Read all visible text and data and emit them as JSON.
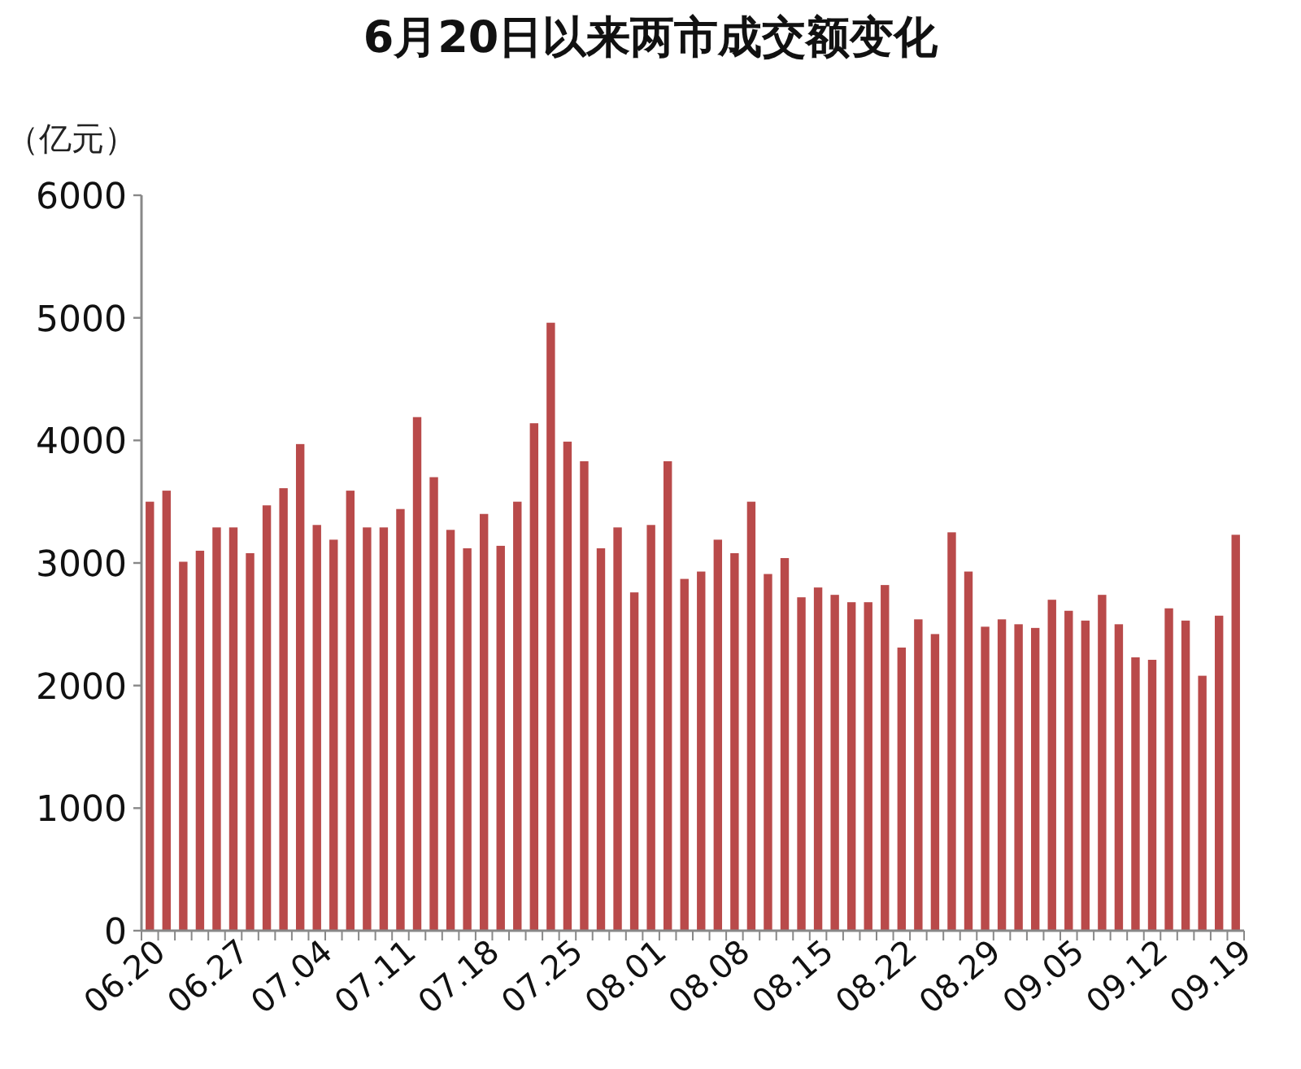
{
  "chart_data": {
    "type": "bar",
    "title": "6月20日以来两市成交额变化",
    "ylabel": "（亿元）",
    "categories": [
      "06.20",
      null,
      null,
      null,
      null,
      "06.27",
      null,
      null,
      null,
      null,
      "07.04",
      null,
      null,
      null,
      null,
      "07.11",
      null,
      null,
      null,
      null,
      "07.18",
      null,
      null,
      null,
      null,
      "07.25",
      null,
      null,
      null,
      null,
      "08.01",
      null,
      null,
      null,
      null,
      "08.08",
      null,
      null,
      null,
      null,
      "08.15",
      null,
      null,
      null,
      null,
      "08.22",
      null,
      null,
      null,
      null,
      "08.29",
      null,
      null,
      null,
      null,
      "09.05",
      null,
      null,
      null,
      null,
      "09.12",
      null,
      null,
      null,
      null,
      "09.19"
    ],
    "values": [
      3500,
      3590,
      3010,
      3100,
      3290,
      3290,
      3080,
      3470,
      3610,
      3970,
      3310,
      3190,
      3590,
      3290,
      3290,
      3440,
      4190,
      3700,
      3270,
      3120,
      3400,
      3140,
      3500,
      4140,
      4960,
      3990,
      3830,
      3120,
      3290,
      2760,
      3310,
      3830,
      2870,
      2930,
      3190,
      3080,
      3500,
      2910,
      3040,
      2720,
      2800,
      2740,
      2680,
      2680,
      2820,
      2310,
      2540,
      2420,
      3250,
      2930,
      2480,
      2540,
      2500,
      2470,
      2700,
      2610,
      2530,
      2740,
      2500,
      2230,
      2210,
      2630,
      2530,
      2080,
      2570,
      3230
    ],
    "color": "#b94a4a",
    "ylim": [
      0,
      6000
    ],
    "yticks": [
      0,
      1000,
      2000,
      3000,
      4000,
      5000,
      6000
    ]
  }
}
